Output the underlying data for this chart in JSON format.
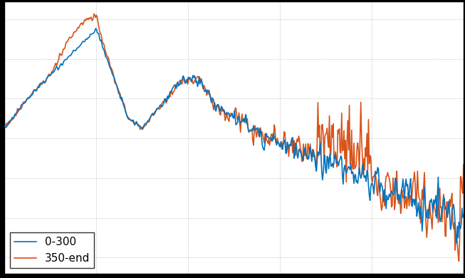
{
  "title": "",
  "xlabel": "",
  "ylabel": "",
  "line1_label": "0-300",
  "line2_label": "350-end",
  "line1_color": "#0072BD",
  "line2_color": "#D95319",
  "background_color": "#ffffff",
  "grid_color": "#aaaaaa",
  "figsize": [
    6.53,
    3.9
  ],
  "dpi": 100,
  "legend_loc": "lower left",
  "legend_fontsize": 11,
  "linewidth": 1.2,
  "n_points": 600
}
